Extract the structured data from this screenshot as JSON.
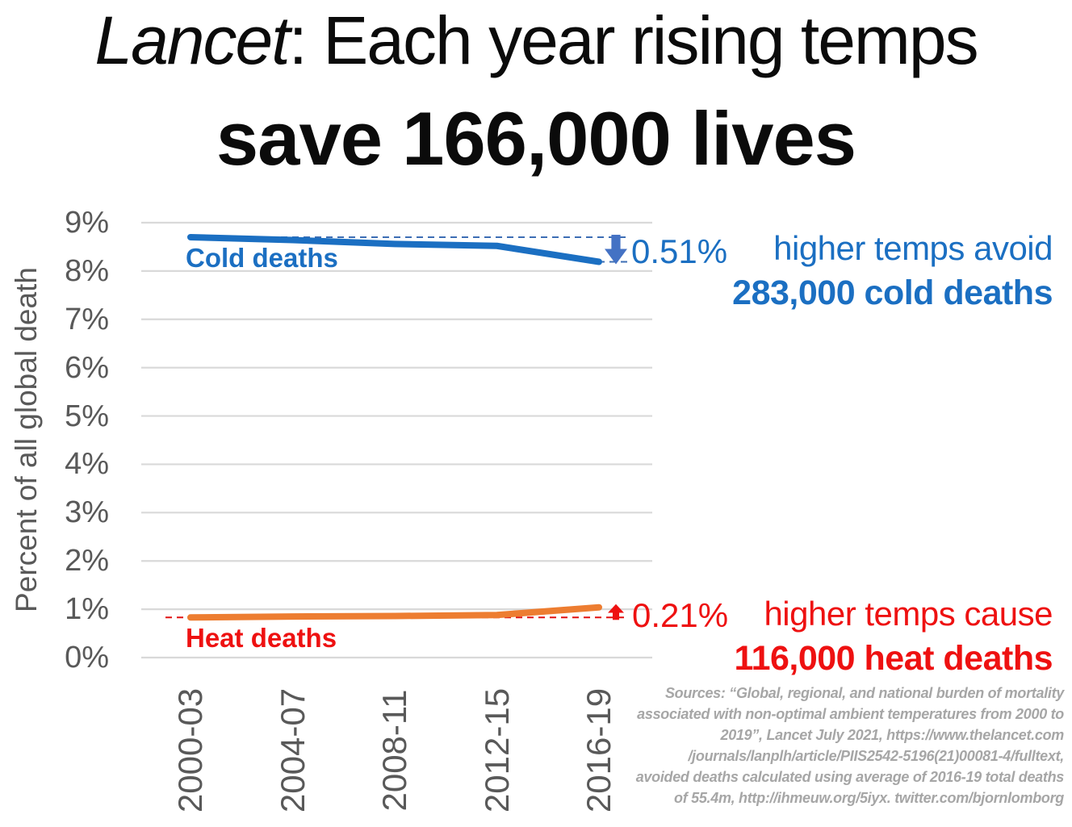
{
  "page": {
    "title_line1_italic": "Lancet",
    "title_line1_rest": ": Each year rising temps",
    "title_line2": "save 166,000 lives"
  },
  "chart_data": {
    "type": "line",
    "title": "Lancet: Each year rising temps save 166,000 lives",
    "xlabel": "",
    "ylabel": "Percent of all global death",
    "ylim": [
      0,
      9
    ],
    "ytick_labels": [
      "0%",
      "1%",
      "2%",
      "3%",
      "4%",
      "5%",
      "6%",
      "7%",
      "8%",
      "9%"
    ],
    "grid": "horizontal",
    "gridline_color": "#d9d9d9",
    "legend_position": "inline-series-labels",
    "categories": [
      "2000-03",
      "2004-07",
      "2008-11",
      "2012-15",
      "2016-19"
    ],
    "series": [
      {
        "name": "Cold deaths",
        "color": "#1b6fc2",
        "values": [
          8.7,
          8.64,
          8.56,
          8.52,
          8.19
        ]
      },
      {
        "name": "Heat deaths",
        "color": "#ed7d31",
        "label_color": "#ee1111",
        "values": [
          0.83,
          0.85,
          0.86,
          0.88,
          1.04
        ]
      }
    ],
    "annotations": [
      {
        "label": "0.51%",
        "direction": "down",
        "series": "Cold deaths",
        "baseline_value": 8.7,
        "end_value": 8.19,
        "text_color": "#1b6fc2",
        "arrow_color": "#4472c4",
        "dash_color": "#3d6eb4",
        "end_dash": true
      },
      {
        "label": "0.21%",
        "direction": "up",
        "series": "Heat deaths",
        "baseline_value": 0.83,
        "end_value": 1.04,
        "text_color": "#ee1111",
        "arrow_color": "#ee1111",
        "dash_color": "#e01010",
        "end_dash": false
      }
    ]
  },
  "side_notes": {
    "cold": {
      "line1": "higher temps avoid",
      "line2": "283,000 cold deaths",
      "color": "#1b6fc2"
    },
    "heat": {
      "line1": "higher temps cause",
      "line2": "116,000 heat deaths",
      "color": "#ee1111"
    }
  },
  "axis_color": "#595959",
  "sources": "Sources: “Global, regional, and national burden of mortality\nassociated with non-optimal ambient temperatures from 2000 to\n2019”, Lancet July 2021, https://www.thelancet.com\n/journals/lanplh/article/PIIS2542-5196(21)00081-4/fulltext,\navoided deaths calculated using average of 2016-19 total deaths\nof 55.4m, http://ihmeuw.org/5iyx. twitter.com/bjornlomborg"
}
